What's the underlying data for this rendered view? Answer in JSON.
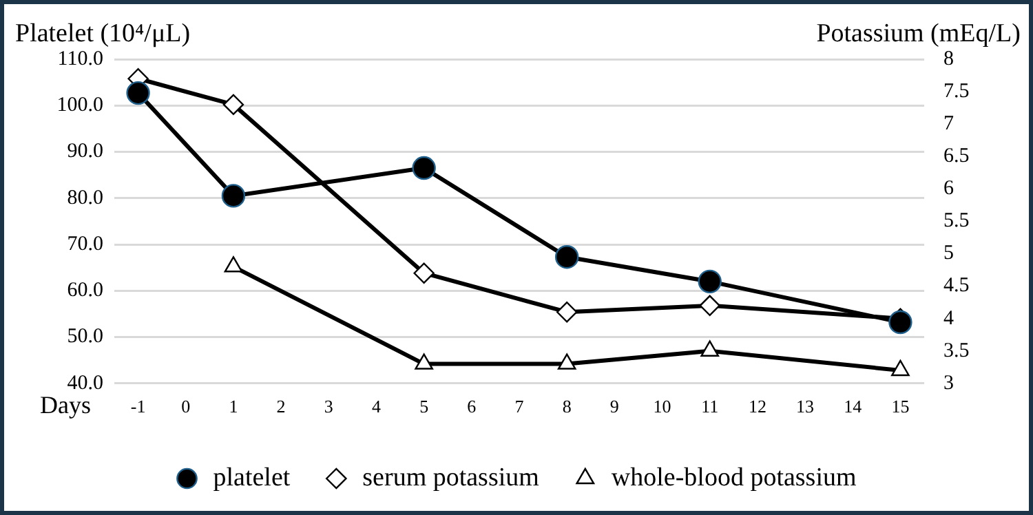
{
  "chart_data": {
    "type": "line",
    "xlabel": "Days",
    "ylabel": "Platelet (10⁴/μL)",
    "y2label": "Potassium (mEq/L)",
    "x": [
      -1,
      1,
      5,
      8,
      11,
      15
    ],
    "series": [
      {
        "name": "platelet",
        "color": "#000000",
        "marker": "circle",
        "values": [
          102.7,
          80.5,
          86.5,
          67.3,
          62.0,
          53.2
        ]
      },
      {
        "name": "serum potassium",
        "color": "#000000",
        "marker": "diamond",
        "axis": "y2",
        "values": [
          7.7,
          7.3,
          4.7,
          4.1,
          4.2,
          4.0
        ]
      },
      {
        "name": "whole-blood potassium",
        "color": "#000000",
        "marker": "triangle",
        "axis": "y2",
        "x": [
          1,
          5,
          8,
          11,
          15
        ],
        "values": [
          4.8,
          3.3,
          3.3,
          3.5,
          3.2
        ]
      }
    ],
    "xlim": [
      -1.5,
      15.5
    ],
    "xticks": [
      -1,
      0,
      1,
      2,
      3,
      4,
      5,
      6,
      7,
      8,
      9,
      10,
      11,
      12,
      13,
      14,
      15
    ],
    "ylim": [
      40,
      110
    ],
    "yticks": [
      {
        "value": 40,
        "label": "40.0"
      },
      {
        "value": 50,
        "label": "50.0"
      },
      {
        "value": 60,
        "label": "60.0"
      },
      {
        "value": 70,
        "label": "70.0"
      },
      {
        "value": 80,
        "label": "80.0"
      },
      {
        "value": 90,
        "label": "90.0"
      },
      {
        "value": 100,
        "label": "100.0"
      },
      {
        "value": 110,
        "label": "110.0"
      }
    ],
    "y2lim": [
      3,
      8
    ],
    "y2ticks": [
      3,
      3.5,
      4,
      4.5,
      5,
      5.5,
      6,
      6.5,
      7,
      7.5,
      8
    ],
    "grid": "y",
    "legend": "bottom",
    "line_style": "solid"
  }
}
